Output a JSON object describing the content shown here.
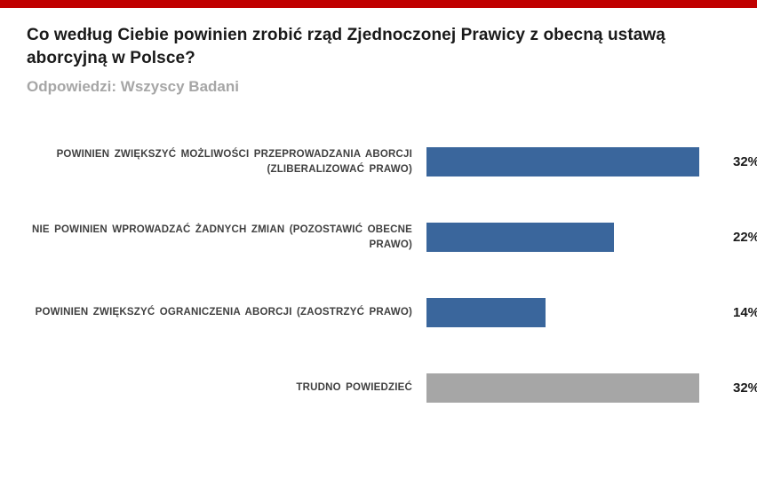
{
  "header": {
    "title": "Co według Ciebie powinien zrobić rząd Zjednoczonej Prawicy z obecną ustawą aborcyjną w Polsce?",
    "subtitle": "Odpowiedzi: Wszyscy Badani"
  },
  "chart_data": {
    "type": "bar",
    "orientation": "horizontal",
    "title": "Co według Ciebie powinien zrobić rząd Zjednoczonej Prawicy z obecną ustawą aborcyjną w Polsce?",
    "subtitle": "Odpowiedzi: Wszyscy Badani",
    "categories": [
      "POWINIEN ZWIĘKSZYĆ MOŻLIWOŚCI PRZEPROWADZANIA ABORCJI (ZLIBERALIZOWAĆ PRAWO)",
      "NIE POWINIEN WPROWADZAĆ ŻADNYCH ZMIAN (POZOSTAWIĆ OBECNE PRAWO)",
      "POWINIEN ZWIĘKSZYĆ OGRANICZENIA ABORCJI (ZAOSTRZYĆ PRAWO)",
      "TRUDNO POWIEDZIEĆ"
    ],
    "values": [
      32,
      22,
      14,
      32
    ],
    "value_labels": [
      "32%",
      "22%",
      "14%",
      "32%"
    ],
    "colors": [
      "#3a669c",
      "#3a669c",
      "#3a669c",
      "#a6a6a6"
    ],
    "xlim": [
      0,
      35
    ],
    "grid": false,
    "legend": false,
    "accent_bar_color": "#c00000",
    "value_suffix": "%"
  }
}
